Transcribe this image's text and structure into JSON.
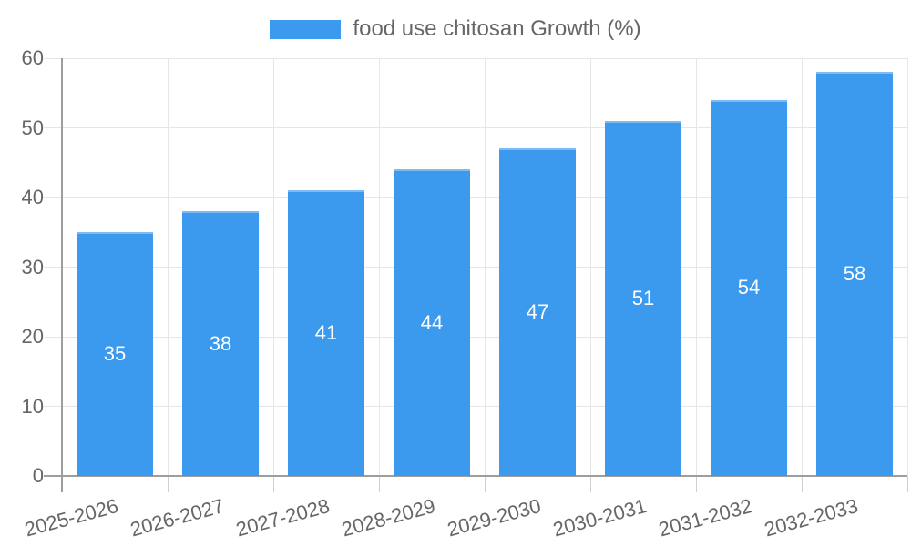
{
  "chart_data": {
    "type": "bar",
    "legend_label": "food use chitosan Growth (%)",
    "legend_position": "top",
    "categories": [
      "2025-2026",
      "2026-2027",
      "2027-2028",
      "2028-2029",
      "2029-2030",
      "2030-2031",
      "2031-2032",
      "2032-2033"
    ],
    "values": [
      35,
      38,
      41,
      44,
      47,
      51,
      54,
      58
    ],
    "ylim": [
      0,
      60
    ],
    "yticks": [
      0,
      10,
      20,
      30,
      40,
      50,
      60
    ],
    "grid": true,
    "bar_color": "#3b99ee",
    "bar_border_color": "#7fbaf3",
    "value_label_color": "#ffffff",
    "tick_label_color": "#666666",
    "grid_color": "#e6e6e6",
    "axis_color": "#9e9e9e",
    "tick_color": "#cfcfcf"
  }
}
